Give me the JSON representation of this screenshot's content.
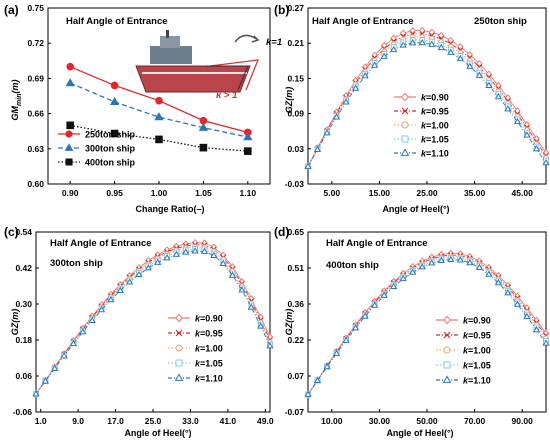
{
  "chart_data": [
    {
      "panel": "(a)",
      "type": "line",
      "annotation": "Half Angle of Entrance",
      "xlabel": "Change Ratio(–)",
      "ylabel": "GM_min(m)",
      "categories": [
        "0.90",
        "0.95",
        "1.00",
        "1.05",
        "1.10"
      ],
      "x": [
        0.9,
        0.95,
        1.0,
        1.05,
        1.1
      ],
      "xlim": [
        0.875,
        1.125
      ],
      "ylim": [
        0.6,
        0.75
      ],
      "yticks": [
        "0.60",
        "0.63",
        "0.66",
        "0.69",
        "0.72",
        "0.75"
      ],
      "series": [
        {
          "name": "250ton ship",
          "values": [
            0.7,
            0.684,
            0.671,
            0.654,
            0.644
          ],
          "color": "#e8232b",
          "marker": "circle",
          "dash": "solid"
        },
        {
          "name": "300ton ship",
          "values": [
            0.686,
            0.67,
            0.657,
            0.648,
            0.64
          ],
          "color": "#2e75b6",
          "marker": "triangle",
          "dash": "dashed"
        },
        {
          "name": "400ton ship",
          "values": [
            0.65,
            0.643,
            0.638,
            0.631,
            0.628
          ],
          "color": "#111111",
          "marker": "square",
          "dash": "dotted"
        }
      ],
      "inset_labels": {
        "k_eq": "k=1",
        "k_gt": "k > 1"
      },
      "legend": "bottom-left",
      "grid": false
    },
    {
      "panel": "(b)",
      "type": "line",
      "annotation": "Half Angle of Entrance",
      "subtitle": "250ton ship",
      "xlabel": "Angle of Heel(°)",
      "ylabel": "GZ(m)",
      "xlim": [
        0,
        50
      ],
      "xticks": [
        5,
        15,
        25,
        35,
        45
      ],
      "xtick_labels": [
        "5.00",
        "15.00",
        "25.00",
        "35.00",
        "45.00"
      ],
      "ylim": [
        -0.03,
        0.27
      ],
      "yticks": [
        "-0.03",
        "0.03",
        "0.09",
        "0.15",
        "0.21",
        "0.27"
      ],
      "x_samples": [
        0,
        2,
        4,
        6,
        8,
        10,
        12,
        14,
        16,
        18,
        20,
        22,
        24,
        26,
        28,
        30,
        32,
        34,
        36,
        38,
        40,
        42,
        44,
        46,
        48,
        50
      ],
      "series": [
        {
          "name": "k=0.90",
          "peak_x": 23,
          "peak_y": 0.232,
          "end_y": 0.023,
          "color": "#ee7b73",
          "marker": "diamond",
          "dash": "solid"
        },
        {
          "name": "k=0.95",
          "peak_x": 23,
          "peak_y": 0.226,
          "end_y": 0.018,
          "color": "#d42a2a",
          "marker": "x",
          "dash": "dashdot"
        },
        {
          "name": "k=1.00",
          "peak_x": 23,
          "peak_y": 0.221,
          "end_y": 0.014,
          "color": "#f3a474",
          "marker": "circle",
          "dash": "dotted"
        },
        {
          "name": "k=1.05",
          "peak_x": 23,
          "peak_y": 0.216,
          "end_y": 0.01,
          "color": "#86c8e8",
          "marker": "square",
          "dash": "dotted"
        },
        {
          "name": "k=1.10",
          "peak_x": 23,
          "peak_y": 0.211,
          "end_y": 0.006,
          "color": "#2e75b6",
          "marker": "triangle",
          "dash": "dashdot"
        }
      ],
      "legend": "center",
      "grid": false
    },
    {
      "panel": "(c)",
      "type": "line",
      "annotation": "Half Angle of Entrance",
      "subtitle": "300ton ship",
      "xlabel": "Angle of Heel(°)",
      "ylabel": "GZ(m)",
      "xlim": [
        0,
        50
      ],
      "xticks": [
        1,
        9,
        17,
        25,
        33,
        41,
        49
      ],
      "xtick_labels": [
        "1.0",
        "9.0",
        "17.0",
        "25.0",
        "33.0",
        "41.0",
        "49.0"
      ],
      "ylim": [
        -0.06,
        0.54
      ],
      "yticks": [
        "-0.06",
        "0.06",
        "0.18",
        "0.30",
        "0.42",
        "0.54"
      ],
      "x_samples": [
        0,
        2,
        4,
        6,
        8,
        10,
        12,
        14,
        16,
        18,
        20,
        22,
        24,
        26,
        28,
        30,
        32,
        34,
        36,
        38,
        40,
        42,
        44,
        46,
        48,
        50
      ],
      "series": [
        {
          "name": "k=0.90",
          "peak_x": 35,
          "peak_y": 0.505,
          "end_y": 0.19,
          "color": "#ee7b73",
          "marker": "diamond",
          "dash": "solid"
        },
        {
          "name": "k=0.95",
          "peak_x": 35,
          "peak_y": 0.498,
          "end_y": 0.18,
          "color": "#d42a2a",
          "marker": "x",
          "dash": "dashdot"
        },
        {
          "name": "k=1.00",
          "peak_x": 35,
          "peak_y": 0.491,
          "end_y": 0.172,
          "color": "#f3a474",
          "marker": "circle",
          "dash": "dotted"
        },
        {
          "name": "k=1.05",
          "peak_x": 35,
          "peak_y": 0.484,
          "end_y": 0.165,
          "color": "#86c8e8",
          "marker": "square",
          "dash": "dotted"
        },
        {
          "name": "k=1.10",
          "peak_x": 35,
          "peak_y": 0.477,
          "end_y": 0.16,
          "color": "#2e75b6",
          "marker": "triangle",
          "dash": "dashdot"
        }
      ],
      "legend": "right",
      "grid": false
    },
    {
      "panel": "(d)",
      "type": "line",
      "annotation": "Half Angle of Entrance",
      "subtitle": "400ton ship",
      "xlabel": "Angle of Heel(°)",
      "ylabel": "GZ(m)",
      "xlim": [
        0,
        100
      ],
      "xticks": [
        10,
        30,
        50,
        70,
        90
      ],
      "xtick_labels": [
        "10.00",
        "30.00",
        "50.00",
        "70.00",
        "90.00"
      ],
      "ylim": [
        -0.07,
        0.65
      ],
      "yticks": [
        "-0.07",
        "0.07",
        "0.22",
        "0.36",
        "0.51",
        "0.65"
      ],
      "x_samples": [
        0,
        4,
        8,
        12,
        16,
        20,
        24,
        28,
        32,
        36,
        40,
        44,
        48,
        52,
        56,
        60,
        64,
        68,
        72,
        76,
        80,
        84,
        88,
        92,
        96,
        100
      ],
      "series": [
        {
          "name": "k=0.90",
          "peak_x": 61,
          "peak_y": 0.565,
          "end_y": 0.245,
          "color": "#ee7b73",
          "marker": "diamond",
          "dash": "solid"
        },
        {
          "name": "k=0.95",
          "peak_x": 61,
          "peak_y": 0.558,
          "end_y": 0.235,
          "color": "#d42a2a",
          "marker": "x",
          "dash": "dashdot"
        },
        {
          "name": "k=1.00",
          "peak_x": 61,
          "peak_y": 0.552,
          "end_y": 0.225,
          "color": "#f3a474",
          "marker": "circle",
          "dash": "dotted"
        },
        {
          "name": "k=1.05",
          "peak_x": 61,
          "peak_y": 0.546,
          "end_y": 0.215,
          "color": "#86c8e8",
          "marker": "square",
          "dash": "dotted"
        },
        {
          "name": "k=1.10",
          "peak_x": 61,
          "peak_y": 0.54,
          "end_y": 0.205,
          "color": "#2e75b6",
          "marker": "triangle",
          "dash": "dashdot"
        }
      ],
      "legend": "right",
      "grid": false
    }
  ]
}
